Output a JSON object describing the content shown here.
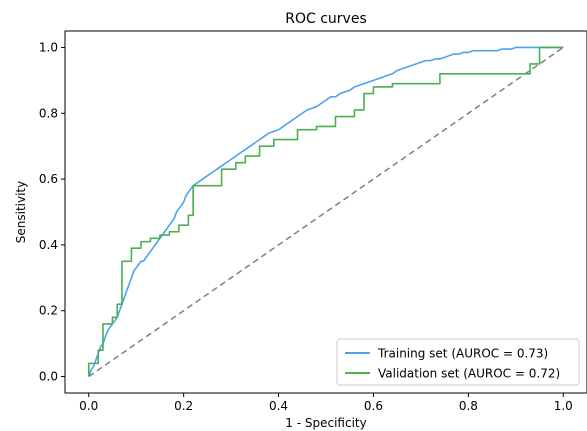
{
  "chart_data": {
    "type": "line",
    "title": "ROC curves",
    "xlabel": "1 - Specificity",
    "ylabel": "Sensitivity",
    "xlim": [
      -0.05,
      1.05
    ],
    "ylim": [
      -0.05,
      1.05
    ],
    "xticks": [
      0.0,
      0.2,
      0.4,
      0.6,
      0.8,
      1.0
    ],
    "xtick_labels": [
      "0.0",
      "0.2",
      "0.4",
      "0.6",
      "0.8",
      "1.0"
    ],
    "yticks": [
      0.0,
      0.2,
      0.4,
      0.6,
      0.8,
      1.0
    ],
    "ytick_labels": [
      "0.0",
      "0.2",
      "0.4",
      "0.6",
      "0.8",
      "1.0"
    ],
    "grid": false,
    "legend_position": "lower-right",
    "series": [
      {
        "name": "Training set (AUROC = 0.73)",
        "color": "#4aa3ef",
        "x": [
          0.0,
          0.005,
          0.01,
          0.015,
          0.02,
          0.025,
          0.03,
          0.035,
          0.04,
          0.045,
          0.05,
          0.055,
          0.06,
          0.065,
          0.07,
          0.075,
          0.08,
          0.085,
          0.09,
          0.095,
          0.1,
          0.105,
          0.11,
          0.115,
          0.12,
          0.125,
          0.13,
          0.135,
          0.14,
          0.145,
          0.15,
          0.155,
          0.16,
          0.165,
          0.17,
          0.175,
          0.18,
          0.185,
          0.19,
          0.195,
          0.2,
          0.205,
          0.21,
          0.215,
          0.22,
          0.23,
          0.24,
          0.25,
          0.26,
          0.27,
          0.28,
          0.29,
          0.3,
          0.31,
          0.32,
          0.33,
          0.34,
          0.35,
          0.36,
          0.37,
          0.38,
          0.39,
          0.4,
          0.41,
          0.42,
          0.43,
          0.44,
          0.45,
          0.46,
          0.47,
          0.48,
          0.49,
          0.5,
          0.51,
          0.52,
          0.53,
          0.54,
          0.55,
          0.56,
          0.57,
          0.58,
          0.59,
          0.6,
          0.61,
          0.62,
          0.63,
          0.64,
          0.65,
          0.66,
          0.67,
          0.68,
          0.69,
          0.7,
          0.71,
          0.72,
          0.73,
          0.74,
          0.75,
          0.76,
          0.77,
          0.78,
          0.79,
          0.8,
          0.81,
          0.82,
          0.83,
          0.84,
          0.85,
          0.86,
          0.87,
          0.88,
          0.89,
          0.9,
          0.91,
          0.92,
          0.93,
          0.94,
          0.95,
          0.96,
          0.97,
          0.98,
          0.99,
          1.0
        ],
        "y": [
          0.0,
          0.02,
          0.03,
          0.05,
          0.07,
          0.09,
          0.1,
          0.12,
          0.14,
          0.15,
          0.16,
          0.17,
          0.18,
          0.2,
          0.22,
          0.24,
          0.26,
          0.28,
          0.3,
          0.32,
          0.33,
          0.34,
          0.35,
          0.35,
          0.36,
          0.37,
          0.38,
          0.39,
          0.4,
          0.41,
          0.42,
          0.43,
          0.44,
          0.45,
          0.46,
          0.47,
          0.48,
          0.5,
          0.51,
          0.52,
          0.53,
          0.55,
          0.56,
          0.57,
          0.58,
          0.59,
          0.6,
          0.61,
          0.62,
          0.63,
          0.64,
          0.65,
          0.66,
          0.67,
          0.68,
          0.69,
          0.7,
          0.71,
          0.72,
          0.73,
          0.74,
          0.745,
          0.75,
          0.76,
          0.77,
          0.78,
          0.79,
          0.8,
          0.81,
          0.815,
          0.82,
          0.83,
          0.84,
          0.85,
          0.85,
          0.86,
          0.865,
          0.87,
          0.88,
          0.885,
          0.89,
          0.895,
          0.9,
          0.905,
          0.91,
          0.915,
          0.92,
          0.93,
          0.935,
          0.94,
          0.945,
          0.95,
          0.955,
          0.96,
          0.96,
          0.965,
          0.965,
          0.97,
          0.975,
          0.98,
          0.98,
          0.985,
          0.985,
          0.99,
          0.99,
          0.99,
          0.99,
          0.99,
          0.99,
          0.995,
          0.995,
          0.995,
          1.0,
          1.0,
          1.0,
          1.0,
          1.0,
          1.0,
          1.0,
          1.0,
          1.0,
          1.0,
          1.0
        ]
      },
      {
        "name": "Validation set (AUROC = 0.72)",
        "color": "#4caf50",
        "x": [
          0.0,
          0.0,
          0.0,
          0.02,
          0.02,
          0.03,
          0.03,
          0.05,
          0.05,
          0.06,
          0.06,
          0.07,
          0.07,
          0.09,
          0.09,
          0.11,
          0.11,
          0.13,
          0.13,
          0.15,
          0.15,
          0.17,
          0.17,
          0.19,
          0.19,
          0.21,
          0.21,
          0.22,
          0.22,
          0.28,
          0.28,
          0.31,
          0.31,
          0.33,
          0.33,
          0.36,
          0.36,
          0.39,
          0.39,
          0.44,
          0.44,
          0.48,
          0.48,
          0.52,
          0.52,
          0.56,
          0.56,
          0.58,
          0.58,
          0.6,
          0.6,
          0.64,
          0.64,
          0.66,
          0.66,
          0.74,
          0.74,
          0.93,
          0.93,
          0.95,
          0.95,
          1.0
        ],
        "y": [
          0.0,
          0.01,
          0.04,
          0.04,
          0.08,
          0.08,
          0.16,
          0.16,
          0.18,
          0.18,
          0.22,
          0.22,
          0.35,
          0.35,
          0.39,
          0.39,
          0.41,
          0.41,
          0.42,
          0.42,
          0.43,
          0.43,
          0.44,
          0.44,
          0.46,
          0.46,
          0.49,
          0.49,
          0.58,
          0.58,
          0.63,
          0.63,
          0.65,
          0.65,
          0.67,
          0.67,
          0.7,
          0.7,
          0.72,
          0.72,
          0.75,
          0.75,
          0.76,
          0.76,
          0.79,
          0.79,
          0.81,
          0.81,
          0.86,
          0.86,
          0.88,
          0.88,
          0.89,
          0.89,
          0.89,
          0.89,
          0.92,
          0.92,
          0.95,
          0.95,
          1.0,
          1.0
        ]
      }
    ],
    "reference_line": {
      "color": "#808080",
      "style": "dashed",
      "x": [
        0.0,
        1.0
      ],
      "y": [
        0.0,
        1.0
      ]
    }
  }
}
